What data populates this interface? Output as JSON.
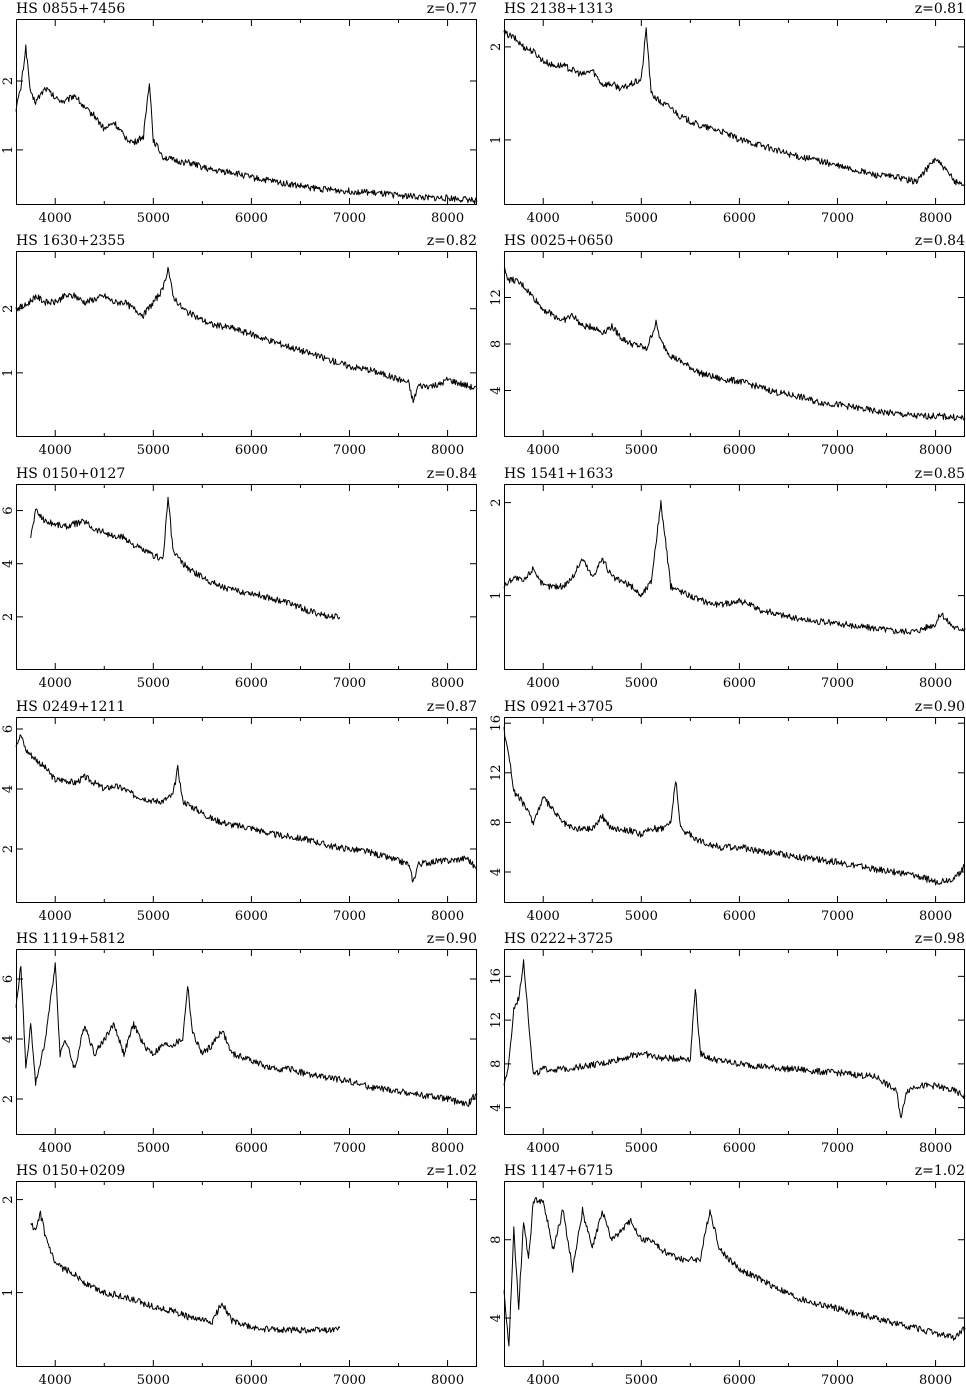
{
  "chart_data": [
    {
      "type": "line",
      "title": "HS 0855+7456",
      "redshift": "z=0.77",
      "xlim": [
        3600,
        8300
      ],
      "ylim": [
        0.2,
        2.9
      ],
      "xticks": [
        4000,
        5000,
        6000,
        7000,
        8000
      ],
      "yticks": [
        1,
        2
      ],
      "x": [
        3600,
        3650,
        3700,
        3750,
        3800,
        3900,
        4000,
        4100,
        4200,
        4300,
        4400,
        4500,
        4600,
        4700,
        4800,
        4900,
        4960,
        5000,
        5100,
        5200,
        5400,
        5600,
        5800,
        6000,
        6200,
        6400,
        6600,
        6800,
        7000,
        7200,
        7400,
        7600,
        7800,
        8000,
        8200,
        8300
      ],
      "y": [
        1.6,
        1.9,
        2.5,
        1.8,
        1.7,
        1.9,
        1.75,
        1.7,
        1.8,
        1.6,
        1.5,
        1.3,
        1.4,
        1.2,
        1.1,
        1.2,
        2.0,
        1.15,
        0.9,
        0.85,
        0.8,
        0.7,
        0.68,
        0.6,
        0.55,
        0.5,
        0.45,
        0.42,
        0.4,
        0.38,
        0.35,
        0.33,
        0.3,
        0.3,
        0.28,
        0.25
      ]
    },
    {
      "type": "line",
      "title": "HS 2138+1313",
      "redshift": "z=0.81",
      "xlim": [
        3600,
        8300
      ],
      "ylim": [
        0.3,
        2.3
      ],
      "xticks": [
        4000,
        5000,
        6000,
        7000,
        8000
      ],
      "yticks": [
        1,
        2
      ],
      "x": [
        3600,
        3700,
        3800,
        3900,
        4000,
        4100,
        4200,
        4300,
        4400,
        4500,
        4600,
        4700,
        4800,
        4900,
        5000,
        5050,
        5100,
        5200,
        5300,
        5400,
        5600,
        5800,
        6000,
        6200,
        6400,
        6600,
        6800,
        7000,
        7200,
        7400,
        7600,
        7800,
        8000,
        8200,
        8300
      ],
      "y": [
        2.15,
        2.1,
        2.0,
        1.95,
        1.85,
        1.8,
        1.8,
        1.75,
        1.7,
        1.75,
        1.6,
        1.6,
        1.55,
        1.6,
        1.65,
        2.2,
        1.5,
        1.4,
        1.35,
        1.25,
        1.15,
        1.1,
        1.0,
        0.95,
        0.88,
        0.82,
        0.78,
        0.72,
        0.67,
        0.62,
        0.6,
        0.55,
        0.8,
        0.55,
        0.52
      ]
    },
    {
      "type": "line",
      "title": "HS 1630+2355",
      "redshift": "z=0.82",
      "xlim": [
        3600,
        8300
      ],
      "ylim": [
        0.0,
        2.9
      ],
      "xticks": [
        4000,
        5000,
        6000,
        7000,
        8000
      ],
      "yticks": [
        1,
        2
      ],
      "x": [
        3600,
        3700,
        3800,
        3900,
        4000,
        4100,
        4200,
        4300,
        4400,
        4500,
        4600,
        4700,
        4800,
        4900,
        5000,
        5100,
        5150,
        5200,
        5300,
        5400,
        5600,
        5800,
        6000,
        6200,
        6400,
        6600,
        6800,
        7000,
        7200,
        7400,
        7600,
        7650,
        7700,
        7900,
        8000,
        8200,
        8300
      ],
      "y": [
        2.0,
        2.05,
        2.2,
        2.1,
        2.1,
        2.2,
        2.2,
        2.1,
        2.15,
        2.2,
        2.1,
        2.1,
        2.0,
        1.9,
        2.1,
        2.3,
        2.65,
        2.2,
        2.0,
        1.9,
        1.75,
        1.7,
        1.6,
        1.5,
        1.4,
        1.3,
        1.2,
        1.1,
        1.05,
        0.95,
        0.85,
        0.55,
        0.8,
        0.8,
        0.9,
        0.8,
        0.75
      ]
    },
    {
      "type": "line",
      "title": "HS 0025+0650",
      "redshift": "z=0.84",
      "xlim": [
        3600,
        8300
      ],
      "ylim": [
        0.0,
        16.0
      ],
      "xticks": [
        4000,
        5000,
        6000,
        7000,
        8000
      ],
      "yticks": [
        4,
        8,
        12
      ],
      "x": [
        3600,
        3650,
        3700,
        3800,
        3900,
        4000,
        4100,
        4200,
        4300,
        4400,
        4500,
        4600,
        4700,
        4800,
        4900,
        5000,
        5050,
        5150,
        5200,
        5300,
        5400,
        5600,
        5800,
        6000,
        6200,
        6400,
        6600,
        6800,
        7000,
        7200,
        7400,
        7600,
        7800,
        8000,
        8200,
        8300
      ],
      "y": [
        14.5,
        13.5,
        13.5,
        13.0,
        12.0,
        11.0,
        10.5,
        10.0,
        10.5,
        9.5,
        9.5,
        9.0,
        9.5,
        8.5,
        8.0,
        7.8,
        7.5,
        9.8,
        8.2,
        7.0,
        6.5,
        5.5,
        5.0,
        4.8,
        4.3,
        3.8,
        3.5,
        3.0,
        2.8,
        2.5,
        2.2,
        2.0,
        1.8,
        1.8,
        1.7,
        1.6
      ]
    },
    {
      "type": "line",
      "title": "HS 0150+0127",
      "redshift": "z=0.84",
      "xlim": [
        3600,
        8300
      ],
      "ylim": [
        0.0,
        7.0
      ],
      "xticks": [
        4000,
        5000,
        6000,
        7000,
        8000
      ],
      "yticks": [
        2,
        4,
        6
      ],
      "x": [
        3750,
        3800,
        3900,
        4000,
        4100,
        4200,
        4300,
        4400,
        4500,
        4600,
        4700,
        4800,
        4900,
        5000,
        5100,
        5150,
        5200,
        5300,
        5400,
        5500,
        5600,
        5800,
        6000,
        6200,
        6400,
        6600,
        6800,
        6900
      ],
      "y": [
        5.0,
        6.0,
        5.6,
        5.5,
        5.4,
        5.5,
        5.6,
        5.3,
        5.2,
        5.0,
        5.0,
        4.7,
        4.5,
        4.3,
        4.2,
        6.5,
        4.5,
        4.0,
        3.7,
        3.5,
        3.3,
        3.0,
        2.9,
        2.7,
        2.5,
        2.2,
        2.0,
        2.0
      ]
    },
    {
      "type": "line",
      "title": "HS 1541+1633",
      "redshift": "z=0.85",
      "xlim": [
        3600,
        8300
      ],
      "ylim": [
        0.2,
        2.2
      ],
      "xticks": [
        4000,
        5000,
        6000,
        7000,
        8000
      ],
      "yticks": [
        1,
        2
      ],
      "x": [
        3600,
        3700,
        3800,
        3900,
        4000,
        4100,
        4200,
        4300,
        4400,
        4500,
        4600,
        4700,
        4800,
        4900,
        5000,
        5100,
        5200,
        5300,
        5400,
        5500,
        5600,
        5800,
        6000,
        6200,
        6400,
        6600,
        6800,
        7000,
        7200,
        7400,
        7600,
        7800,
        8000,
        8050,
        8200,
        8300
      ],
      "y": [
        1.1,
        1.2,
        1.15,
        1.3,
        1.1,
        1.1,
        1.1,
        1.2,
        1.4,
        1.2,
        1.4,
        1.2,
        1.15,
        1.1,
        1.0,
        1.15,
        2.0,
        1.1,
        1.05,
        1.0,
        0.95,
        0.9,
        0.95,
        0.85,
        0.8,
        0.75,
        0.72,
        0.7,
        0.67,
        0.65,
        0.62,
        0.62,
        0.7,
        0.8,
        0.65,
        0.65
      ]
    },
    {
      "type": "line",
      "title": "HS 0249+1211",
      "redshift": "z=0.87",
      "xlim": [
        3600,
        8300
      ],
      "ylim": [
        0.2,
        6.4
      ],
      "xticks": [
        4000,
        5000,
        6000,
        7000,
        8000
      ],
      "yticks": [
        2,
        4,
        6
      ],
      "x": [
        3600,
        3650,
        3700,
        3800,
        3900,
        4000,
        4100,
        4200,
        4300,
        4400,
        4500,
        4600,
        4700,
        4800,
        4900,
        5000,
        5100,
        5200,
        5250,
        5300,
        5400,
        5600,
        5800,
        6000,
        6200,
        6400,
        6600,
        6800,
        7000,
        7200,
        7400,
        7600,
        7650,
        7700,
        7900,
        8000,
        8200,
        8300
      ],
      "y": [
        5.5,
        5.8,
        5.3,
        5.0,
        4.7,
        4.3,
        4.3,
        4.2,
        4.4,
        4.2,
        4.0,
        4.1,
        4.0,
        3.8,
        3.7,
        3.6,
        3.6,
        3.8,
        4.7,
        3.6,
        3.4,
        3.0,
        2.8,
        2.7,
        2.5,
        2.4,
        2.3,
        2.1,
        2.0,
        1.9,
        1.7,
        1.5,
        0.9,
        1.5,
        1.6,
        1.6,
        1.7,
        1.3
      ]
    },
    {
      "type": "line",
      "title": "HS 0921+3705",
      "redshift": "z=0.90",
      "xlim": [
        3600,
        8300
      ],
      "ylim": [
        1.5,
        16.5
      ],
      "xticks": [
        4000,
        5000,
        6000,
        7000,
        8000
      ],
      "yticks": [
        4,
        8,
        12,
        16
      ],
      "x": [
        3600,
        3650,
        3700,
        3800,
        3900,
        4000,
        4100,
        4200,
        4300,
        4400,
        4500,
        4600,
        4700,
        4800,
        4900,
        5000,
        5100,
        5200,
        5300,
        5350,
        5400,
        5500,
        5600,
        5800,
        6000,
        6200,
        6400,
        6600,
        6800,
        7000,
        7200,
        7400,
        7600,
        7800,
        8000,
        8200,
        8300
      ],
      "y": [
        15.5,
        13.5,
        10.5,
        9.5,
        8.0,
        10.0,
        9.0,
        8.0,
        7.5,
        7.5,
        7.5,
        8.5,
        7.5,
        7.5,
        7.3,
        7.0,
        7.5,
        7.5,
        8.0,
        11.5,
        7.5,
        7.0,
        6.5,
        6.0,
        6.0,
        5.7,
        5.5,
        5.2,
        5.0,
        4.8,
        4.5,
        4.2,
        4.0,
        3.7,
        3.2,
        3.5,
        4.5
      ]
    },
    {
      "type": "line",
      "title": "HS 1119+5812",
      "redshift": "z=0.90",
      "xlim": [
        3600,
        8300
      ],
      "ylim": [
        0.8,
        7.0
      ],
      "xticks": [
        4000,
        5000,
        6000,
        7000,
        8000
      ],
      "yticks": [
        2,
        4,
        6
      ],
      "x": [
        3600,
        3650,
        3700,
        3750,
        3800,
        3900,
        4000,
        4050,
        4100,
        4200,
        4300,
        4400,
        4500,
        4600,
        4700,
        4800,
        4900,
        5000,
        5100,
        5200,
        5300,
        5350,
        5400,
        5500,
        5600,
        5700,
        5800,
        6000,
        6200,
        6400,
        6600,
        6800,
        7000,
        7200,
        7400,
        7600,
        7800,
        8000,
        8200,
        8300
      ],
      "y": [
        5.0,
        6.5,
        3.0,
        4.5,
        2.5,
        4.0,
        6.5,
        3.5,
        4.0,
        3.0,
        4.5,
        3.5,
        4.0,
        4.5,
        3.5,
        4.5,
        3.8,
        3.5,
        3.8,
        3.8,
        4.0,
        5.8,
        4.2,
        3.5,
        3.8,
        4.3,
        3.5,
        3.3,
        3.0,
        3.0,
        2.8,
        2.7,
        2.6,
        2.4,
        2.3,
        2.2,
        2.1,
        2.0,
        1.8,
        2.2
      ]
    },
    {
      "type": "line",
      "title": "HS 0222+3725",
      "redshift": "z=0.98",
      "xlim": [
        3600,
        8300
      ],
      "ylim": [
        1.5,
        18.5
      ],
      "xticks": [
        4000,
        5000,
        6000,
        7000,
        8000
      ],
      "yticks": [
        4,
        8,
        12,
        16
      ],
      "x": [
        3600,
        3650,
        3700,
        3750,
        3800,
        3850,
        3900,
        4000,
        4200,
        4400,
        4600,
        4800,
        5000,
        5200,
        5400,
        5500,
        5550,
        5600,
        5700,
        5800,
        6000,
        6200,
        6400,
        6600,
        6800,
        7000,
        7200,
        7400,
        7600,
        7650,
        7700,
        7800,
        8000,
        8200,
        8300
      ],
      "y": [
        6.0,
        8.0,
        13.0,
        14.0,
        17.5,
        12.0,
        7.0,
        7.5,
        7.5,
        7.8,
        8.0,
        8.5,
        9.0,
        8.5,
        8.5,
        8.5,
        15.0,
        9.0,
        8.5,
        8.3,
        8.0,
        7.8,
        7.6,
        7.5,
        7.3,
        7.2,
        7.0,
        6.8,
        5.5,
        3.0,
        5.5,
        6.0,
        6.0,
        5.5,
        5.0
      ]
    },
    {
      "type": "line",
      "title": "HS 0150+0209",
      "redshift": "z=1.02",
      "xlim": [
        3600,
        8300
      ],
      "ylim": [
        0.2,
        2.2
      ],
      "xticks": [
        4000,
        5000,
        6000,
        7000,
        8000
      ],
      "yticks": [
        1,
        2
      ],
      "x": [
        3750,
        3800,
        3850,
        3900,
        4000,
        4100,
        4200,
        4300,
        4400,
        4500,
        4600,
        4800,
        5000,
        5200,
        5400,
        5600,
        5700,
        5800,
        6000,
        6200,
        6400,
        6600,
        6800,
        6900
      ],
      "y": [
        1.75,
        1.65,
        1.85,
        1.6,
        1.3,
        1.25,
        1.2,
        1.1,
        1.05,
        1.0,
        0.98,
        0.92,
        0.85,
        0.8,
        0.72,
        0.68,
        0.9,
        0.7,
        0.62,
        0.6,
        0.6,
        0.6,
        0.6,
        0.62
      ]
    },
    {
      "type": "line",
      "title": "HS 1147+6715",
      "redshift": "z=1.02",
      "xlim": [
        3600,
        8300
      ],
      "ylim": [
        1.5,
        11.0
      ],
      "xticks": [
        4000,
        5000,
        6000,
        7000,
        8000
      ],
      "yticks": [
        4,
        8
      ],
      "x": [
        3600,
        3650,
        3700,
        3750,
        3800,
        3850,
        3900,
        4000,
        4100,
        4200,
        4300,
        4400,
        4500,
        4600,
        4700,
        4800,
        4900,
        5000,
        5100,
        5200,
        5400,
        5600,
        5700,
        5800,
        6000,
        6200,
        6400,
        6600,
        6800,
        7000,
        7200,
        7400,
        7600,
        7800,
        8000,
        8200,
        8300
      ],
      "y": [
        5.5,
        2.5,
        8.5,
        4.5,
        9.0,
        7.0,
        10.0,
        10.0,
        7.5,
        9.5,
        6.5,
        9.5,
        7.5,
        9.5,
        8.0,
        8.5,
        9.0,
        8.0,
        8.0,
        7.5,
        7.0,
        7.0,
        9.5,
        7.5,
        6.5,
        6.0,
        5.5,
        5.0,
        4.7,
        4.5,
        4.2,
        4.0,
        3.7,
        3.5,
        3.2,
        3.0,
        3.5
      ]
    }
  ]
}
